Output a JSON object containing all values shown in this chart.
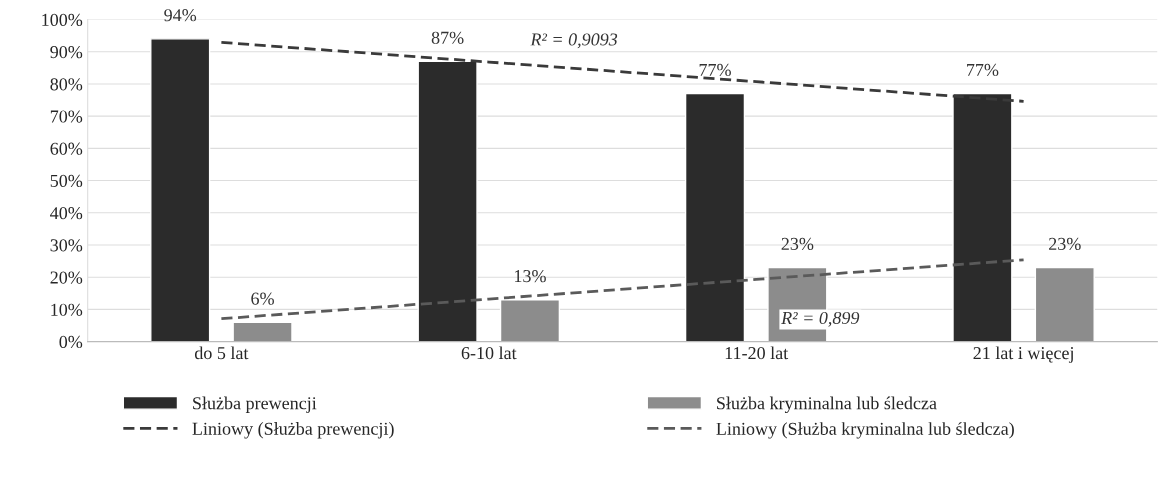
{
  "chart_data": {
    "type": "bar",
    "categories": [
      "do 5 lat",
      "6-10 lat",
      "11-20 lat",
      "21 lat i więcej"
    ],
    "series": [
      {
        "name": "Służba prewencji",
        "color": "#2b2b2b",
        "values": [
          94,
          87,
          77,
          77
        ],
        "value_labels": [
          "94%",
          "87%",
          "77%",
          "77%"
        ]
      },
      {
        "name": "Służba kryminalna lub śledcza",
        "color": "#8c8c8c",
        "values": [
          6,
          13,
          23,
          23
        ],
        "value_labels": [
          "6%",
          "13%",
          "23%",
          "23%"
        ]
      },
      {
        "name": "Liniowy (Służba prewencji)",
        "type": "line",
        "color": "#3a3a3a",
        "line_style": "dashed",
        "values": [
          92.9,
          86.8,
          80.7,
          74.6
        ]
      },
      {
        "name": "Liniowy (Służba kryminalna lub śledcza)",
        "type": "line",
        "color": "#5a5a5a",
        "line_style": "dashed",
        "values": [
          7.1,
          13.2,
          19.3,
          25.4
        ]
      }
    ],
    "annotations": [
      {
        "text": "R² = 0,9093",
        "x": "6-10 lat",
        "y": 86.8
      },
      {
        "text": "R² = 0,899",
        "x": "11-20 lat",
        "y": 19.3
      }
    ],
    "ylim": [
      0,
      100
    ],
    "yticks": [
      {
        "value": 0,
        "label": "0%"
      },
      {
        "value": 10,
        "label": "10%"
      },
      {
        "value": 20,
        "label": "20%"
      },
      {
        "value": 30,
        "label": "30%"
      },
      {
        "value": 40,
        "label": "40%"
      },
      {
        "value": 50,
        "label": "50%"
      },
      {
        "value": 60,
        "label": "60%"
      },
      {
        "value": 70,
        "label": "70%"
      },
      {
        "value": 80,
        "label": "80%"
      },
      {
        "value": 90,
        "label": "90%"
      },
      {
        "value": 100,
        "label": "100%"
      }
    ],
    "grid": "y",
    "legend": "bottom"
  }
}
